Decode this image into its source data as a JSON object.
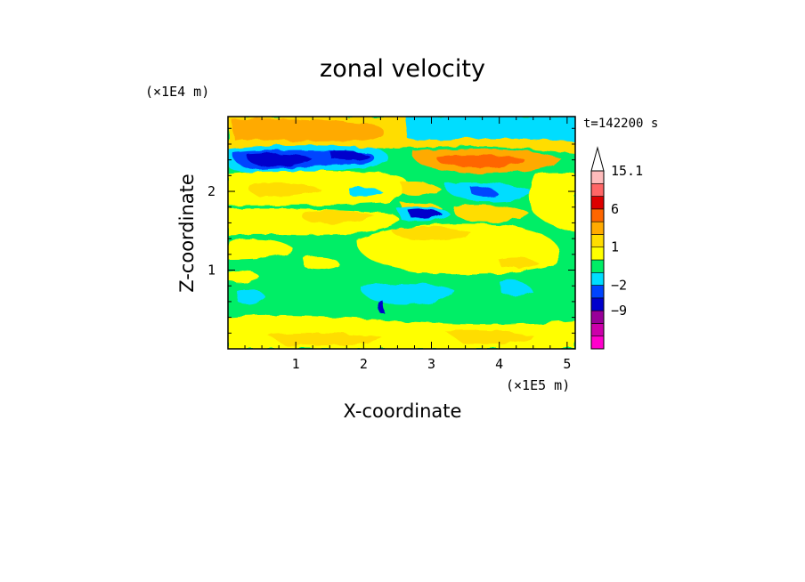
{
  "chart_data": {
    "type": "heatmap",
    "title": "zonal velocity",
    "xlabel": "X-coordinate",
    "ylabel": "Z-coordinate",
    "x_scale_label": "(×1E5 m)",
    "y_scale_label": "(×1E4 m)",
    "time_label": "t=142200 s",
    "xlim": [
      0,
      5.12
    ],
    "ylim": [
      0,
      2.95
    ],
    "x_ticks": [
      1,
      2,
      3,
      4,
      5
    ],
    "y_ticks": [
      1,
      2
    ],
    "colorbar": {
      "levels": [
        -15,
        -12,
        -9,
        -6,
        -2,
        -1,
        0,
        1,
        2,
        3,
        6,
        9,
        12,
        15.1
      ],
      "colors": [
        "#ff00cc",
        "#cc00aa",
        "#990099",
        "#0000cc",
        "#0044ff",
        "#00ddff",
        "#00ee66",
        "#ffff00",
        "#ffdd00",
        "#ffaa00",
        "#ff6600",
        "#dd0000",
        "#ff6666",
        "#ffbbbb"
      ],
      "labeled_values": [
        15.1,
        6,
        1,
        -2,
        -9
      ],
      "extend": "max"
    }
  }
}
